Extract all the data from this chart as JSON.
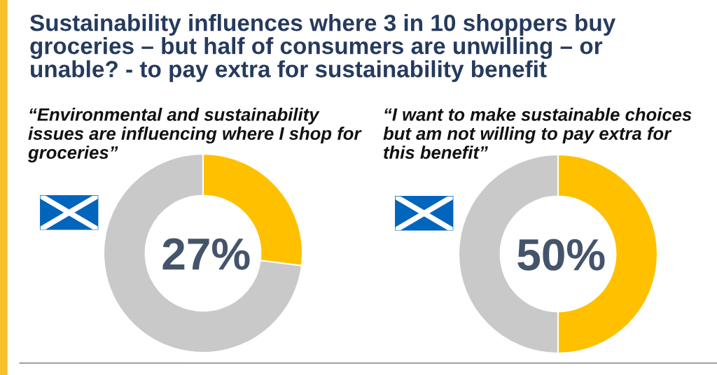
{
  "chart_data": [
    {
      "type": "donut",
      "title": "Sustainability influences where 3 in 10 shoppers buy groceries – but half of consumers are unwilling – or unable? - to pay extra for sustainability benefit",
      "subtitle": "“Environmental and sustainability issues are influencing where I shop for groceries”",
      "categories": [
        null,
        null
      ],
      "values": [
        27,
        73
      ],
      "colors": [
        "#ffc000",
        "#c9c9c9"
      ],
      "value_labels": [
        "27%",
        null
      ]
    },
    {
      "type": "donut",
      "subtitle": "“I want to make sustainable choices but am not willing to pay extra for this benefit”",
      "categories": [
        null,
        null
      ],
      "values": [
        50,
        50
      ],
      "colors": [
        "#ffc000",
        "#c9c9c9"
      ],
      "value_labels": [
        "50%",
        null
      ]
    }
  ]
}
